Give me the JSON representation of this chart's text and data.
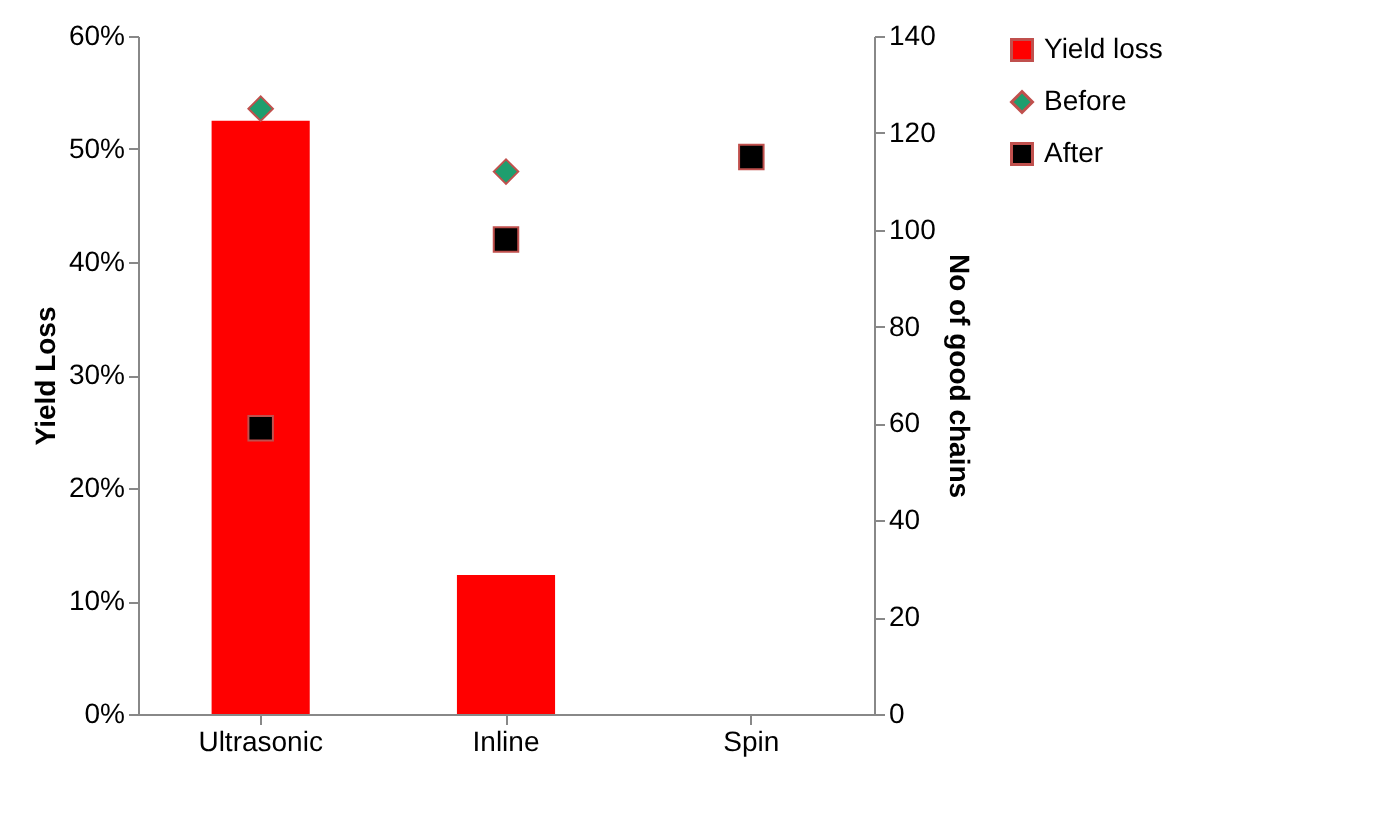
{
  "chart_data": {
    "type": "bar",
    "categories": [
      "Ultrasonic",
      "Inline",
      "Spin"
    ],
    "ylabel": "Yield Loss",
    "y2label": "No of good chains",
    "ylim": [
      0,
      60
    ],
    "yticks": [
      {
        "value": 0,
        "label": "0%"
      },
      {
        "value": 10,
        "label": "10%"
      },
      {
        "value": 20,
        "label": "20%"
      },
      {
        "value": 30,
        "label": "30%"
      },
      {
        "value": 40,
        "label": "40%"
      },
      {
        "value": 50,
        "label": "50%"
      },
      {
        "value": 60,
        "label": "60%"
      }
    ],
    "y2lim": [
      0,
      140
    ],
    "y2ticks": [
      0,
      20,
      40,
      60,
      80,
      100,
      120,
      140
    ],
    "grid": false,
    "legend": "right",
    "series": [
      {
        "name": "Yield loss",
        "color": "#ff0000",
        "values": [
          52.5,
          12.3,
          0
        ]
      },
      {
        "name": "Before",
        "type": "scatter",
        "axis": "y2",
        "marker": "diamond",
        "color": "#1e9e6e",
        "values": [
          125,
          112,
          null
        ]
      },
      {
        "name": "After",
        "type": "scatter",
        "axis": "y2",
        "marker": "square",
        "color": "#000000",
        "values": [
          59,
          98,
          115
        ]
      }
    ]
  }
}
